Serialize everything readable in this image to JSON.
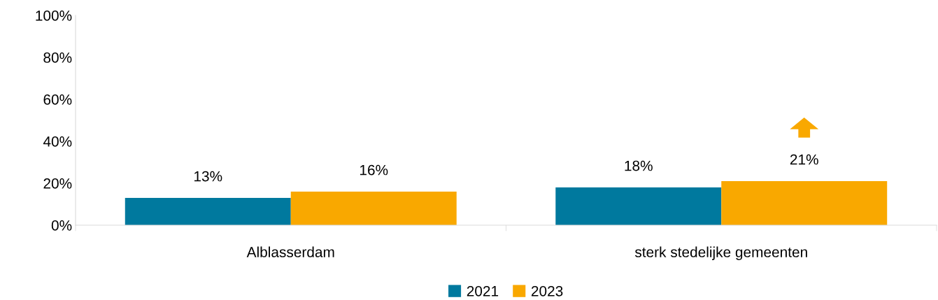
{
  "chart_data": {
    "type": "bar",
    "categories": [
      "Alblasserdam",
      "sterk stedelijke gemeenten"
    ],
    "series": [
      {
        "name": "2021",
        "color": "#00799e",
        "values": [
          13,
          18
        ],
        "value_labels": [
          "13%",
          "18%"
        ]
      },
      {
        "name": "2023",
        "color": "#f9a800",
        "values": [
          16,
          21
        ],
        "value_labels": [
          "16%",
          "21%"
        ]
      }
    ],
    "ylim": [
      0,
      100
    ],
    "yticks": [
      {
        "value": 0,
        "label": "0%"
      },
      {
        "value": 20,
        "label": "20%"
      },
      {
        "value": 40,
        "label": "40%"
      },
      {
        "value": 60,
        "label": "60%"
      },
      {
        "value": 80,
        "label": "80%"
      },
      {
        "value": 100,
        "label": "100%"
      }
    ],
    "grid": false,
    "legend": "bottom"
  }
}
